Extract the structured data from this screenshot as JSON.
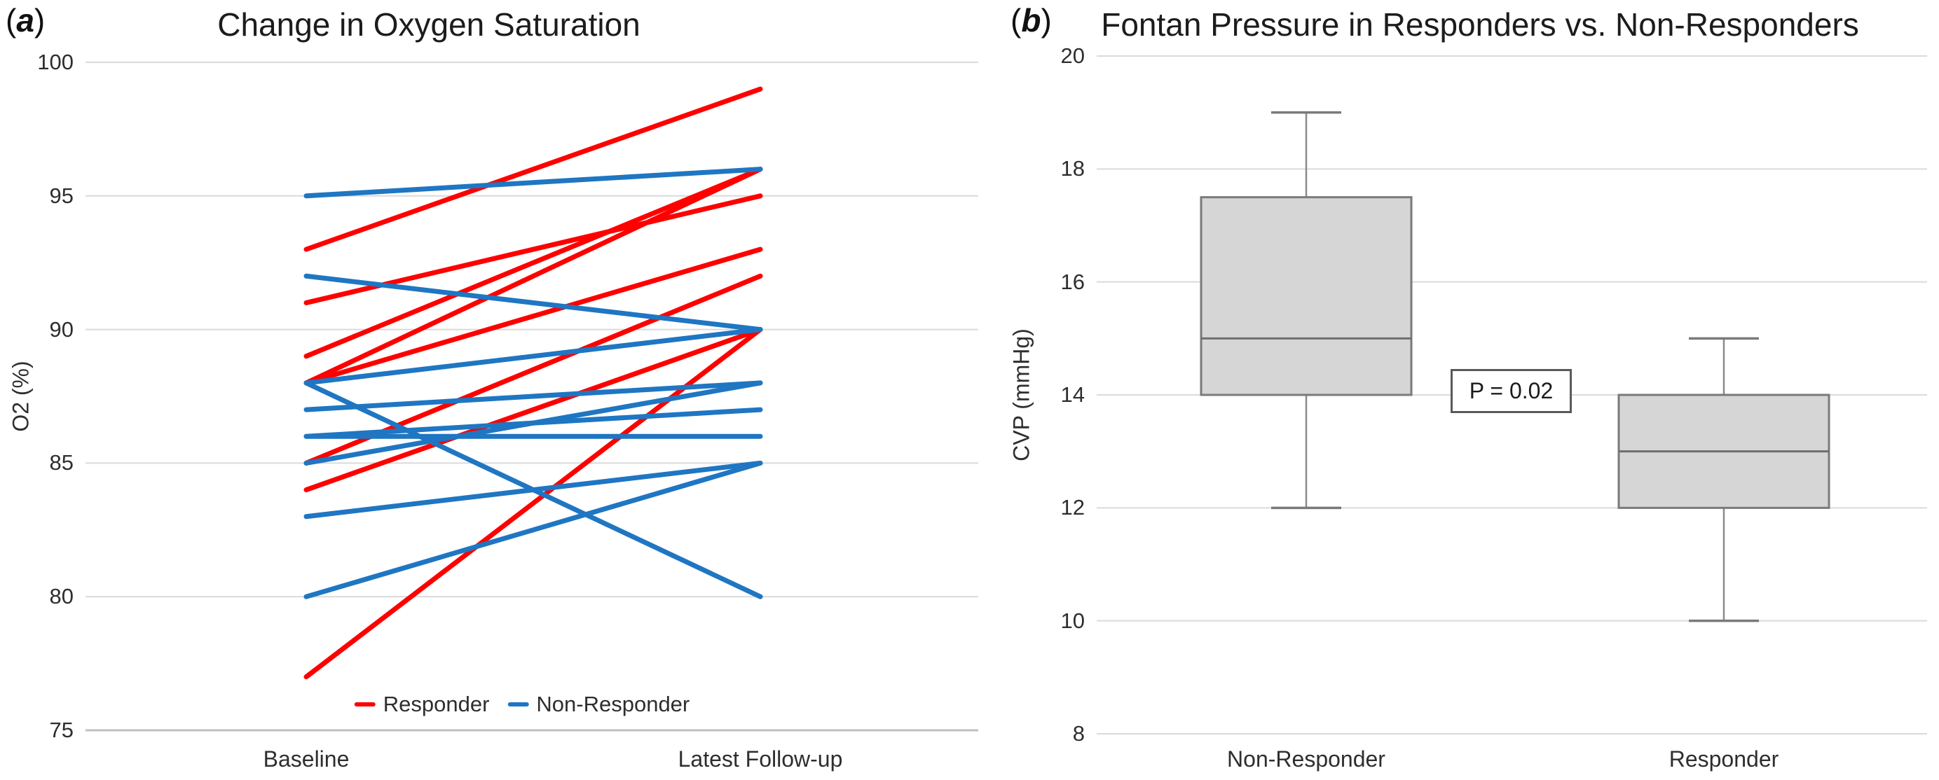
{
  "figure": {
    "panel_a_tag": {
      "open": "(",
      "letter": "a",
      "close": ")"
    },
    "panel_b_tag": {
      "open": "(",
      "letter": "b",
      "close": ")"
    }
  },
  "panel_a": {
    "title": "Change in Oxygen Saturation",
    "y_axis_label": "O2 (%)",
    "x_categories": [
      "Baseline",
      "Latest Follow-up"
    ],
    "legend": [
      {
        "label": "Responder",
        "color": "#FF0000"
      },
      {
        "label": "Non-Responder",
        "color": "#1F76C2"
      }
    ]
  },
  "panel_b": {
    "title": "Fontan Pressure in Responders vs. Non-Responders",
    "y_axis_label": "CVP (mmHg)",
    "x_categories": [
      "Non-Responder",
      "Responder"
    ],
    "annotation": "P = 0.02"
  },
  "chart_data": [
    {
      "type": "line",
      "subtype": "paired-slope-chart",
      "title": "Change in Oxygen Saturation",
      "x_categories": [
        "Baseline",
        "Latest Follow-up"
      ],
      "ylabel": "O2 (%)",
      "ylim": [
        75,
        100
      ],
      "yticks": [
        100,
        95,
        90,
        85,
        80,
        75
      ],
      "grid": true,
      "legend_position": "bottom",
      "series": [
        {
          "name": "Responder",
          "color": "#FF0000",
          "pairs_baseline_to_followup": [
            [
              93,
              99
            ],
            [
              89,
              96
            ],
            [
              88,
              96
            ],
            [
              91,
              95
            ],
            [
              88,
              93
            ],
            [
              85,
              92
            ],
            [
              84,
              90
            ],
            [
              77,
              90
            ]
          ]
        },
        {
          "name": "Non-Responder",
          "color": "#1F76C2",
          "pairs_baseline_to_followup": [
            [
              95,
              96
            ],
            [
              92,
              90
            ],
            [
              88,
              90
            ],
            [
              88,
              80
            ],
            [
              87,
              88
            ],
            [
              85,
              88
            ],
            [
              86,
              87
            ],
            [
              86,
              86
            ],
            [
              83,
              85
            ],
            [
              80,
              85
            ]
          ]
        }
      ]
    },
    {
      "type": "box",
      "title": "Fontan Pressure in Responders vs. Non-Responders",
      "ylabel": "CVP (mmHg)",
      "ylim": [
        8,
        20
      ],
      "yticks": [
        20,
        18,
        16,
        14,
        12,
        10,
        8
      ],
      "grid": true,
      "annotation": "P = 0.02",
      "categories": [
        "Non-Responder",
        "Responder"
      ],
      "boxes": [
        {
          "category": "Non-Responder",
          "whisker_low": 12,
          "q1": 14,
          "median": 15,
          "q3": 17.5,
          "whisker_high": 19
        },
        {
          "category": "Responder",
          "whisker_low": 10,
          "q1": 12,
          "median": 13,
          "q3": 14,
          "whisker_high": 15
        }
      ],
      "box_fill": "#D6D6D6",
      "box_border": "#7A7A7A",
      "median_color": "#6E6E6E",
      "whisker_color": "#8A8A8A",
      "gridline_color": "#DADADA"
    }
  ]
}
